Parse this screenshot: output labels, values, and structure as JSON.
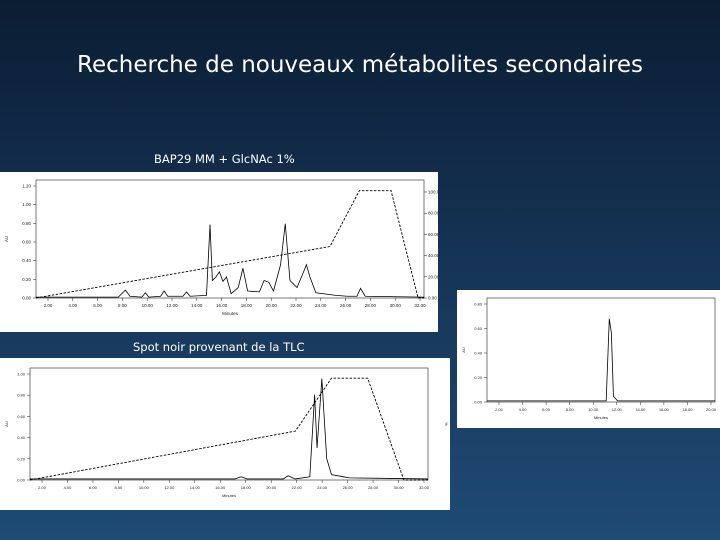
{
  "slide": {
    "title": "Recherche de nouveaux métabolites secondaires",
    "caption_top": "BAP29 MM + GlcNAc 1%",
    "caption_bottom": "Spot noir provenant de la TLC"
  },
  "colors": {
    "background_top": "#0b1d33",
    "background_bottom": "#1f4a74",
    "text": "#ffffff",
    "trace": "#000000"
  },
  "chart_data": [
    {
      "type": "line",
      "title": "",
      "ylabel": "AU",
      "y2label": "% Gradient B",
      "xlabel": "Minutes",
      "yticks": [
        "0.00",
        "0.20",
        "0.40",
        "0.60",
        "0.80",
        "1.00",
        "1.20"
      ],
      "y2ticks": [
        "0.00",
        "20.00",
        "40.00",
        "60.00",
        "80.00",
        "100.00"
      ],
      "xticks": [
        "2.00",
        "4.00",
        "6.00",
        "8.00",
        "10.00",
        "12.00",
        "14.00",
        "16.00",
        "18.00",
        "20.00",
        "22.00",
        "24.00",
        "26.00",
        "28.00",
        "30.00",
        "32.00"
      ],
      "series": [
        {
          "values": [
            [
              0,
              0.01
            ],
            [
              7,
              0.01
            ],
            [
              7.6,
              0.09
            ],
            [
              8,
              0.02
            ],
            [
              9,
              0.01
            ],
            [
              9.3,
              0.06
            ],
            [
              9.6,
              0.01
            ],
            [
              10.6,
              0.02
            ],
            [
              10.9,
              0.08
            ],
            [
              11.2,
              0.02
            ],
            [
              12.5,
              0.02
            ],
            [
              12.8,
              0.07
            ],
            [
              13.1,
              0.02
            ],
            [
              14.5,
              0.03
            ],
            [
              14.8,
              0.84
            ],
            [
              15,
              0.2
            ],
            [
              15.3,
              0.24
            ],
            [
              15.6,
              0.3
            ],
            [
              15.9,
              0.19
            ],
            [
              16.2,
              0.24
            ],
            [
              16.6,
              0.05
            ],
            [
              17.2,
              0.12
            ],
            [
              17.6,
              0.34
            ],
            [
              18,
              0.08
            ],
            [
              19,
              0.07
            ],
            [
              19.4,
              0.2
            ],
            [
              19.8,
              0.18
            ],
            [
              20.2,
              0.08
            ],
            [
              20.8,
              0.38
            ],
            [
              21.2,
              0.85
            ],
            [
              21.6,
              0.2
            ],
            [
              22.2,
              0.12
            ],
            [
              22.7,
              0.28
            ],
            [
              23,
              0.38
            ],
            [
              23.3,
              0.24
            ],
            [
              23.8,
              0.06
            ],
            [
              25.5,
              0.03
            ],
            [
              26.5,
              0.02
            ],
            [
              27.3,
              0.02
            ],
            [
              27.6,
              0.11
            ],
            [
              28,
              0.02
            ],
            [
              33,
              0.01
            ]
          ]
        },
        {
          "values": [
            [
              0,
              0
            ],
            [
              25,
              48
            ],
            [
              27.5,
              100
            ],
            [
              30.2,
              100
            ],
            [
              32.5,
              0
            ],
            [
              33,
              0
            ]
          ]
        }
      ]
    },
    {
      "type": "line",
      "title": "",
      "ylabel": "AU",
      "xlabel": "Minutes",
      "yticks": [
        "0.00",
        "0.20",
        "0.40",
        "0.60",
        "0.80"
      ],
      "xticks": [
        "2.00",
        "4.00",
        "6.00",
        "8.00",
        "10.00",
        "12.00",
        "14.00",
        "16.00",
        "18.00",
        "20.00"
      ],
      "series": [
        {
          "values": [
            [
              0,
              0.01
            ],
            [
              11.5,
              0.01
            ],
            [
              11.8,
              0.72
            ],
            [
              12,
              0.6
            ],
            [
              12.2,
              0.05
            ],
            [
              12.6,
              0.01
            ],
            [
              22,
              0.01
            ]
          ]
        }
      ]
    },
    {
      "type": "line",
      "title": "",
      "ylabel": "AU",
      "xlabel": "Minutes",
      "y2label": "%",
      "yticks": [
        "0.00",
        "0.20",
        "0.40",
        "0.60",
        "0.80",
        "1.00"
      ],
      "xticks": [
        "2.00",
        "4.00",
        "6.00",
        "8.00",
        "10.00",
        "12.00",
        "14.00",
        "16.00",
        "18.00",
        "20.00",
        "22.00",
        "24.00",
        "26.00",
        "28.00",
        "30.00",
        "32.00"
      ],
      "series": [
        {
          "values": [
            [
              0,
              0.01
            ],
            [
              17,
              0.01
            ],
            [
              17.5,
              0.03
            ],
            [
              18,
              0.01
            ],
            [
              21,
              0.01
            ],
            [
              21.4,
              0.04
            ],
            [
              22,
              0.01
            ],
            [
              23.2,
              0.03
            ],
            [
              23.6,
              0.8
            ],
            [
              23.8,
              0.3
            ],
            [
              24.2,
              0.95
            ],
            [
              24.6,
              0.2
            ],
            [
              25,
              0.05
            ],
            [
              26,
              0.03
            ],
            [
              26.5,
              0.02
            ],
            [
              33,
              0.01
            ]
          ]
        },
        {
          "values": [
            [
              0,
              0
            ],
            [
              22,
              48
            ],
            [
              25,
              100
            ],
            [
              28,
              100
            ],
            [
              31,
              0
            ],
            [
              33,
              0
            ]
          ]
        }
      ]
    }
  ]
}
